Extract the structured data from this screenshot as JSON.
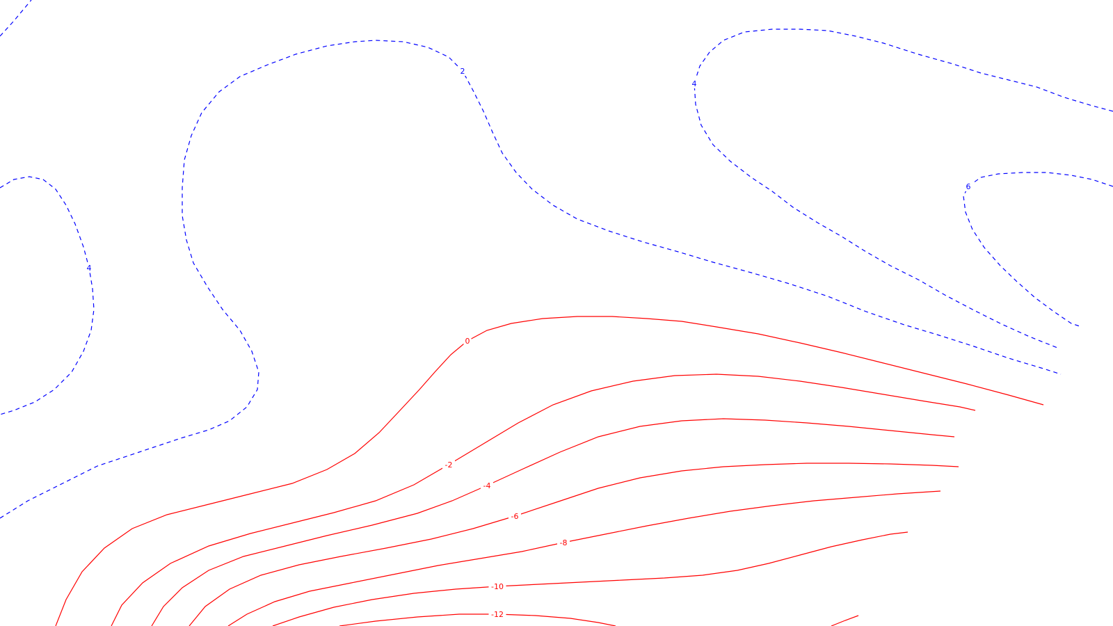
{
  "colors": {
    "positive": "#0000ff",
    "negative": "#ff0000",
    "background": "#ffffff"
  },
  "chart_data": {
    "type": "contour",
    "title": "",
    "xlabel": "",
    "ylabel": "",
    "grid": false,
    "legend": "none",
    "styles": {
      "positive": "dashed blue",
      "negative": "solid red"
    },
    "levels": [
      {
        "value": 2,
        "label": "2"
      },
      {
        "value": 4,
        "label": "4"
      },
      {
        "value": 6,
        "label": "6"
      },
      {
        "value": 0,
        "label": "0"
      },
      {
        "value": -2,
        "label": "-2"
      },
      {
        "value": -4,
        "label": "-4"
      },
      {
        "value": -6,
        "label": "-6"
      },
      {
        "value": -8,
        "label": "-8"
      },
      {
        "value": -10,
        "label": "-10"
      },
      {
        "value": -12,
        "label": "-12"
      }
    ]
  }
}
